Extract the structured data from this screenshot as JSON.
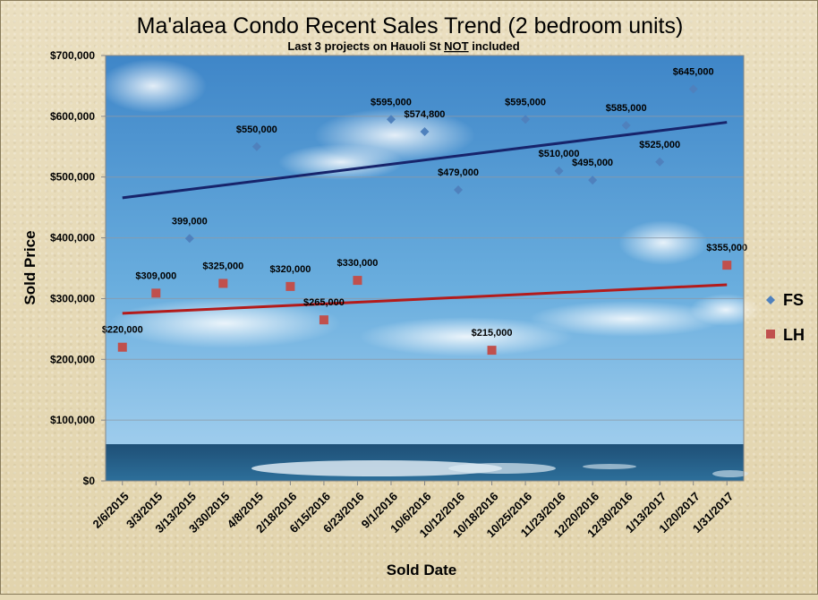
{
  "chart_data": {
    "type": "scatter",
    "title": "Ma'alaea Condo Recent Sales Trend (2 bedroom units)",
    "subtitle_prefix": "Last 3 projects on Hauoli St ",
    "subtitle_emphasis": "NOT",
    "subtitle_suffix": " included",
    "xlabel": "Sold Date",
    "ylabel": "Sold Price",
    "ylim": [
      0,
      700000
    ],
    "yticks": [
      "$0",
      "$100,000",
      "$200,000",
      "$300,000",
      "$400,000",
      "$500,000",
      "$600,000",
      "$700,000"
    ],
    "categories": [
      "2/6/2015",
      "3/3/2015",
      "3/13/2015",
      "3/30/2015",
      "4/8/2015",
      "2/18/2016",
      "6/15/2016",
      "6/23/2016",
      "9/1/2016",
      "10/6/2016",
      "10/12/2016",
      "10/18/2016",
      "10/25/2016",
      "11/23/2016",
      "12/20/2016",
      "12/30/2016",
      "1/13/2017",
      "1/20/2017",
      "1/31/2017"
    ],
    "grid": true,
    "legend_position": "right",
    "series": [
      {
        "name": "FS",
        "marker": "diamond",
        "color": "#4f81bd",
        "trend_color": "#17246b",
        "points": [
          {
            "i": 2,
            "y": 399000,
            "label": "399,000"
          },
          {
            "i": 4,
            "y": 550000,
            "label": "$550,000"
          },
          {
            "i": 8,
            "y": 595000,
            "label": "$595,000"
          },
          {
            "i": 9,
            "y": 574800,
            "label": "$574,800"
          },
          {
            "i": 10,
            "y": 479000,
            "label": "$479,000"
          },
          {
            "i": 12,
            "y": 595000,
            "label": "$595,000"
          },
          {
            "i": 13,
            "y": 510000,
            "label": "$510,000"
          },
          {
            "i": 14,
            "y": 495000,
            "label": "$495,000"
          },
          {
            "i": 15,
            "y": 585000,
            "label": "$585,000"
          },
          {
            "i": 16,
            "y": 525000,
            "label": "$525,000"
          },
          {
            "i": 17,
            "y": 645000,
            "label": "$645,000"
          }
        ]
      },
      {
        "name": "LH",
        "marker": "square",
        "color": "#c0504d",
        "trend_color": "#b31b1b",
        "points": [
          {
            "i": 0,
            "y": 220000,
            "label": "$220,000"
          },
          {
            "i": 1,
            "y": 309000,
            "label": "$309,000"
          },
          {
            "i": 3,
            "y": 325000,
            "label": "$325,000"
          },
          {
            "i": 5,
            "y": 320000,
            "label": "$320,000"
          },
          {
            "i": 6,
            "y": 265000,
            "label": "$265,000"
          },
          {
            "i": 7,
            "y": 330000,
            "label": "$330,000"
          },
          {
            "i": 11,
            "y": 215000,
            "label": "$215,000"
          },
          {
            "i": 18,
            "y": 355000,
            "label": "$355,000"
          }
        ]
      }
    ]
  }
}
